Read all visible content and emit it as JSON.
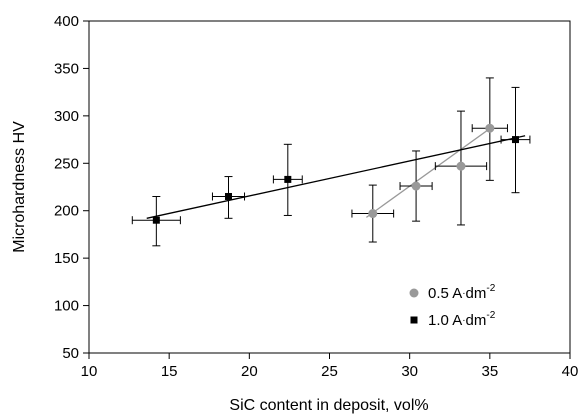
{
  "chart_data": {
    "type": "scatter",
    "title": "",
    "xlabel": "SiC content in deposit, vol%",
    "ylabel": "Microhardness HV",
    "xlim": [
      10,
      40
    ],
    "ylim": [
      50,
      400
    ],
    "x_ticks": [
      10,
      15,
      20,
      25,
      30,
      35,
      40
    ],
    "y_ticks": [
      50,
      100,
      150,
      200,
      250,
      300,
      350,
      400
    ],
    "grid": false,
    "legend_position": "bottom-right",
    "series": [
      {
        "name_parts": [
          "0.5 A",
          "·",
          "dm",
          "-2"
        ],
        "marker": "circle",
        "color": "#999999",
        "line_color": "#999999",
        "points": [
          {
            "x": 27.7,
            "y": 197,
            "xerr": 1.3,
            "yerr_low": 30,
            "yerr_high": 30
          },
          {
            "x": 30.4,
            "y": 226,
            "xerr": 1.0,
            "yerr_low": 37,
            "yerr_high": 37
          },
          {
            "x": 33.2,
            "y": 247,
            "xerr": 1.6,
            "yerr_low": 62,
            "yerr_high": 58
          },
          {
            "x": 35.0,
            "y": 287,
            "xerr": 1.1,
            "yerr_low": 55,
            "yerr_high": 53
          }
        ],
        "trend": [
          [
            27.3,
            193
          ],
          [
            35.2,
            289
          ]
        ]
      },
      {
        "name_parts": [
          "1.0 A",
          "·",
          "dm",
          "-2"
        ],
        "marker": "square",
        "color": "#000000",
        "line_color": "#000000",
        "points": [
          {
            "x": 14.2,
            "y": 190,
            "xerr": 1.5,
            "yerr_low": 27,
            "yerr_high": 25
          },
          {
            "x": 18.7,
            "y": 215,
            "xerr": 1.0,
            "yerr_low": 23,
            "yerr_high": 21
          },
          {
            "x": 22.4,
            "y": 233,
            "xerr": 0.9,
            "yerr_low": 38,
            "yerr_high": 37
          },
          {
            "x": 36.6,
            "y": 275,
            "xerr": 0.9,
            "yerr_low": 56,
            "yerr_high": 55
          }
        ],
        "trend": [
          [
            13.6,
            192
          ],
          [
            37.2,
            279
          ]
        ]
      }
    ]
  }
}
